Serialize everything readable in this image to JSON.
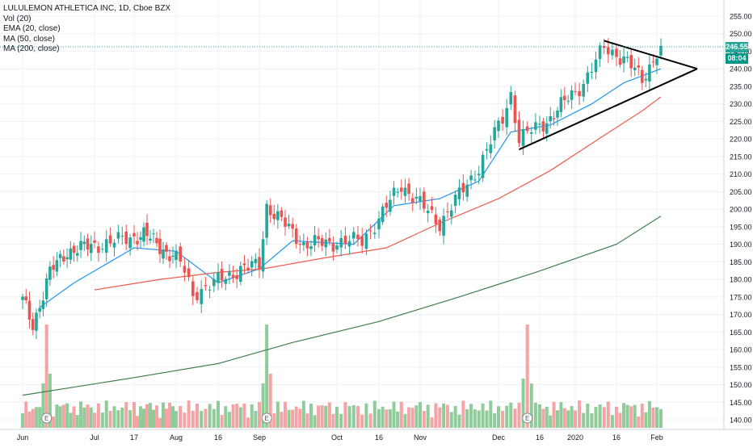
{
  "legend": {
    "title": "LULULEMON ATHLETICA INC, 1D, Cboe BZX",
    "vol": "Vol (20)",
    "ema": "EMA (20, close)",
    "ma50": "MA (50, close)",
    "ma200": "MA (200, close)"
  },
  "badges": {
    "last_price": "246.55",
    "countdown": "08:04"
  },
  "colors": {
    "up": "#26a69a",
    "down": "#ef5350",
    "vol_up": "#8fcc9a",
    "vol_down": "#f4a4a4",
    "ema": "#2196f3",
    "ma50": "#f05a50",
    "ma200": "#3f7f4a",
    "last_price": "#26a69a",
    "countdown": "#009688"
  },
  "chart_data": {
    "type": "candlestick",
    "title": "LULULEMON ATHLETICA INC, 1D, Cboe BZX",
    "y_axis_ticks": [
      "140.00",
      "145.00",
      "150.00",
      "155.00",
      "160.00",
      "165.00",
      "170.00",
      "175.00",
      "180.00",
      "185.00",
      "190.00",
      "195.00",
      "200.00",
      "205.00",
      "210.00",
      "215.00",
      "220.00",
      "225.00",
      "230.00",
      "235.00",
      "240.00",
      "245.00",
      "250.00",
      "255.00"
    ],
    "ylim": [
      137,
      258
    ],
    "x_axis_ticks": [
      "Jun",
      "Jul",
      "17",
      "Aug",
      "16",
      "Sep",
      "Oct",
      "16",
      "Nov",
      "Dec",
      "16",
      "2020",
      "16",
      "Feb"
    ],
    "last_price": 246.55,
    "key_closes": [
      {
        "date": "Jun 03",
        "close": 174
      },
      {
        "date": "Jun 07",
        "close": 167
      },
      {
        "date": "Jun 14",
        "close": 182
      },
      {
        "date": "Jun 21",
        "close": 188
      },
      {
        "date": "Jul 10",
        "close": 191
      },
      {
        "date": "Jul 19",
        "close": 193
      },
      {
        "date": "Aug 02",
        "close": 185
      },
      {
        "date": "Aug 06",
        "close": 176
      },
      {
        "date": "Aug 23",
        "close": 183
      },
      {
        "date": "Sep 03",
        "close": 184
      },
      {
        "date": "Sep 06",
        "close": 201
      },
      {
        "date": "Sep 20",
        "close": 190
      },
      {
        "date": "Oct 10",
        "close": 191
      },
      {
        "date": "Oct 24",
        "close": 207
      },
      {
        "date": "Nov 08",
        "close": 196
      },
      {
        "date": "Nov 22",
        "close": 212
      },
      {
        "date": "Dec 03",
        "close": 226
      },
      {
        "date": "Dec 06",
        "close": 233
      },
      {
        "date": "Dec 09",
        "close": 220
      },
      {
        "date": "Dec 20",
        "close": 226
      },
      {
        "date": "Jan 03",
        "close": 236
      },
      {
        "date": "Jan 10",
        "close": 246
      },
      {
        "date": "Jan 17",
        "close": 243
      },
      {
        "date": "Jan 24",
        "close": 237
      },
      {
        "date": "Jan 31",
        "close": 246.55
      }
    ],
    "series": [
      {
        "name": "EMA (20, close)",
        "points": [
          [
            "Jun 10",
            172
          ],
          [
            "Jun 24",
            179
          ],
          [
            "Jul 15",
            189
          ],
          [
            "Aug 01",
            188
          ],
          [
            "Aug 15",
            179
          ],
          [
            "Sep 03",
            183
          ],
          [
            "Sep 16",
            191
          ],
          [
            "Oct 07",
            190
          ],
          [
            "Oct 21",
            201
          ],
          [
            "Nov 08",
            203
          ],
          [
            "Nov 22",
            208
          ],
          [
            "Dec 06",
            222
          ],
          [
            "Dec 20",
            224
          ],
          [
            "Jan 06",
            230
          ],
          [
            "Jan 17",
            236
          ],
          [
            "Jan 31",
            240
          ]
        ]
      },
      {
        "name": "MA (50, close)",
        "points": [
          [
            "Jul 01",
            177
          ],
          [
            "Jul 26",
            180
          ],
          [
            "Aug 15",
            182
          ],
          [
            "Sep 05",
            183
          ],
          [
            "Sep 27",
            186
          ],
          [
            "Oct 18",
            189
          ],
          [
            "Nov 08",
            196
          ],
          [
            "Nov 29",
            203
          ],
          [
            "Dec 20",
            211
          ],
          [
            "Jan 10",
            221
          ],
          [
            "Jan 24",
            228
          ],
          [
            "Jan 31",
            232
          ]
        ]
      },
      {
        "name": "MA (200, close)",
        "points": [
          [
            "Jun 01",
            147
          ],
          [
            "Jul 15",
            152
          ],
          [
            "Aug 15",
            156
          ],
          [
            "Sep 15",
            162
          ],
          [
            "Oct 15",
            168
          ],
          [
            "Nov 15",
            175
          ],
          [
            "Dec 15",
            182
          ],
          [
            "Jan 15",
            190
          ],
          [
            "Jan 31",
            198
          ]
        ]
      }
    ],
    "volume_spikes": [
      {
        "date": "Jun 13",
        "direction": "down",
        "relative": "high"
      },
      {
        "date": "Sep 06",
        "direction": "up",
        "relative": "high"
      },
      {
        "date": "Dec 12",
        "direction": "down",
        "relative": "high"
      }
    ],
    "event_markers": [
      "E",
      "E",
      "E"
    ],
    "trendlines": [
      {
        "kind": "descending resistance",
        "from": [
          "Jan 10",
          248
        ],
        "to": [
          "apex",
          240
        ]
      },
      {
        "kind": "ascending support",
        "from": [
          "Dec 09",
          217
        ],
        "to": [
          "apex",
          240
        ]
      }
    ]
  }
}
